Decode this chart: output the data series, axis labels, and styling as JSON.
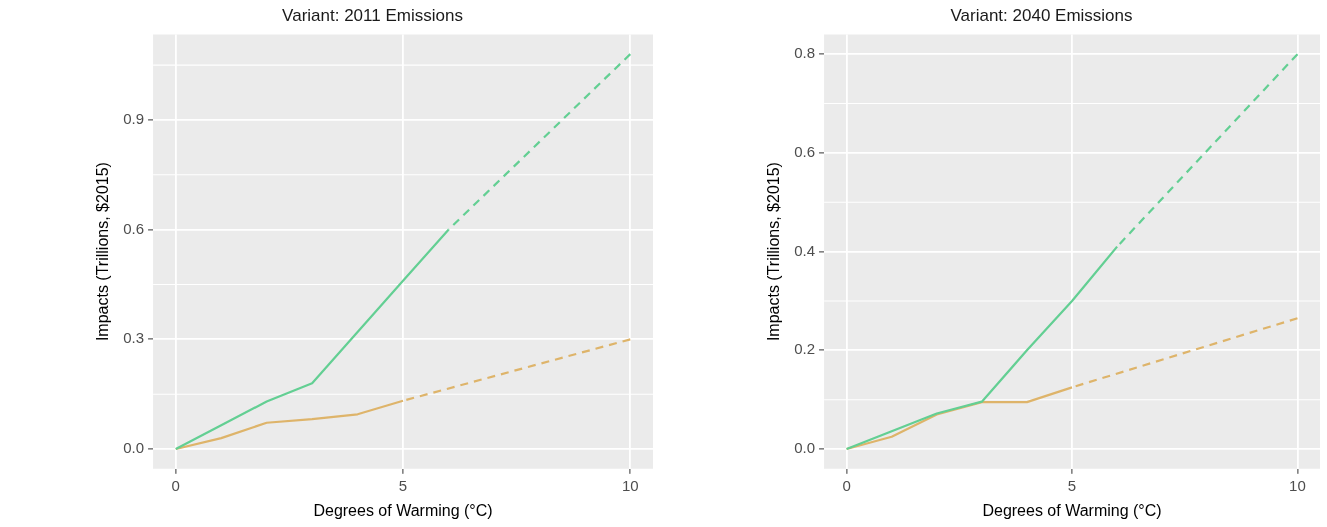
{
  "chart_data": [
    {
      "type": "line",
      "title": "Variant: 2011 Emissions",
      "xlabel": "Degrees of Warming (°C)",
      "ylabel": "Impacts (Trillions, $2015)",
      "xlim": [
        -0.5,
        10.5
      ],
      "ylim": [
        -0.054,
        1.134
      ],
      "xticks": [
        0,
        5,
        10
      ],
      "yticks": [
        {
          "value": 0,
          "label": "0.0"
        },
        {
          "value": 0.15,
          "label": null
        },
        {
          "value": 0.3,
          "label": "0.3"
        },
        {
          "value": 0.45,
          "label": null
        },
        {
          "value": 0.6,
          "label": "0.6"
        },
        {
          "value": 0.75,
          "label": null
        },
        {
          "value": 0.9,
          "label": "0.9"
        },
        {
          "value": 1.05,
          "label": null
        }
      ],
      "grid": true,
      "series": [
        {
          "color": "#63cf93",
          "x": [
            0,
            1,
            2,
            3,
            4,
            5,
            6
          ],
          "values": [
            0,
            0.065,
            0.13,
            0.18,
            0.32,
            0.46,
            0.6
          ]
        },
        {
          "color": "#63cf93",
          "line_style": "dashed",
          "x": [
            6,
            10
          ],
          "values": [
            0.6,
            1.08
          ]
        },
        {
          "color": "#deb46a",
          "x": [
            0,
            1,
            2,
            3,
            4,
            5
          ],
          "values": [
            0,
            0.03,
            0.072,
            0.082,
            0.095,
            0.132
          ]
        },
        {
          "color": "#deb46a",
          "line_style": "dashed",
          "x": [
            5,
            10
          ],
          "values": [
            0.132,
            0.3
          ]
        }
      ]
    },
    {
      "type": "line",
      "title": "Variant: 2040 Emissions",
      "xlabel": "Degrees of Warming (°C)",
      "ylabel": "Impacts (Trillions, $2015)",
      "xlim": [
        -0.5,
        10.5
      ],
      "ylim": [
        -0.04,
        0.84
      ],
      "xticks": [
        0,
        5,
        10
      ],
      "yticks": [
        {
          "value": 0,
          "label": "0.0"
        },
        {
          "value": 0.1,
          "label": null
        },
        {
          "value": 0.2,
          "label": "0.2"
        },
        {
          "value": 0.3,
          "label": null
        },
        {
          "value": 0.4,
          "label": "0.4"
        },
        {
          "value": 0.5,
          "label": null
        },
        {
          "value": 0.6,
          "label": "0.6"
        },
        {
          "value": 0.7,
          "label": null
        },
        {
          "value": 0.8,
          "label": "0.8"
        }
      ],
      "grid": true,
      "series": [
        {
          "color": "#63cf93",
          "x": [
            0,
            1,
            2,
            3,
            4,
            5,
            6
          ],
          "values": [
            0,
            0.036,
            0.072,
            0.096,
            0.2,
            0.3,
            0.41
          ]
        },
        {
          "color": "#63cf93",
          "line_style": "dashed",
          "x": [
            6,
            10
          ],
          "values": [
            0.41,
            0.8
          ]
        },
        {
          "color": "#deb46a",
          "x": [
            0,
            1,
            2,
            3,
            4,
            5
          ],
          "values": [
            0,
            0.025,
            0.07,
            0.095,
            0.095,
            0.125
          ]
        },
        {
          "color": "#deb46a",
          "line_style": "dashed",
          "x": [
            5,
            10
          ],
          "values": [
            0.125,
            0.265
          ]
        }
      ]
    }
  ]
}
